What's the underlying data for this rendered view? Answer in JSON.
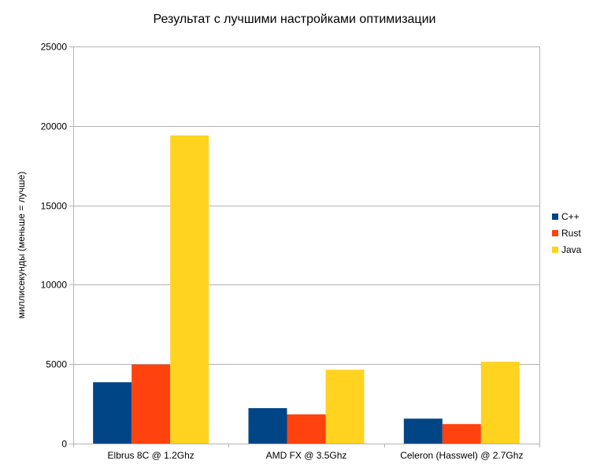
{
  "chart_data": {
    "type": "bar",
    "title": "Результат с лучшими настройками оптимизации",
    "xlabel": "",
    "ylabel": "миллисекунды (меньше = лучше)",
    "ylim": [
      0,
      25000
    ],
    "yticks": [
      0,
      5000,
      10000,
      15000,
      20000,
      25000
    ],
    "grid": true,
    "legend_position": "right",
    "categories": [
      "Elbrus 8C @ 1.2Ghz",
      "AMD FX @ 3.5Ghz",
      "Celeron (Hasswel) @ 2.7Ghz"
    ],
    "series": [
      {
        "name": "C++",
        "color": "#004586",
        "values": [
          3860,
          2230,
          1570
        ]
      },
      {
        "name": "Rust",
        "color": "#ff420e",
        "values": [
          4980,
          1840,
          1230
        ]
      },
      {
        "name": "Java",
        "color": "#ffd320",
        "values": [
          19400,
          4650,
          5150
        ]
      }
    ]
  }
}
